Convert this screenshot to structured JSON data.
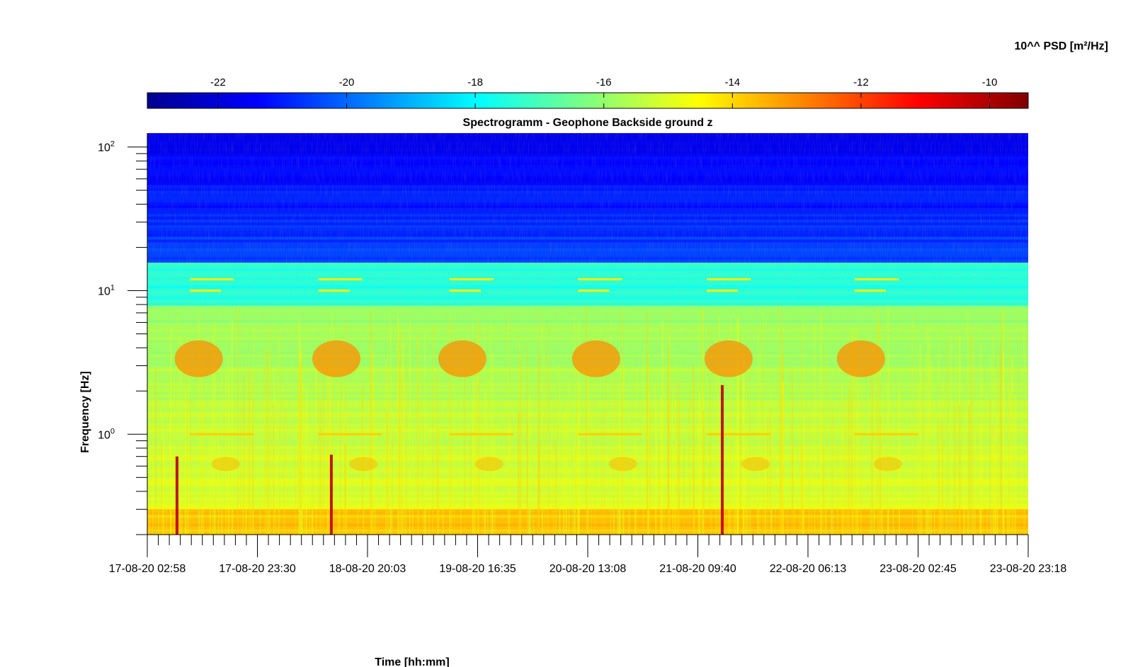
{
  "chart_data": {
    "type": "heatmap",
    "title": "Spectrogramm - Geophone Backside ground z",
    "xlabel": "Time [hh:mm]",
    "ylabel": "Frequency [Hz]",
    "colorbar": {
      "label": "10^^ PSD [m²/Hz]",
      "colormap": "jet",
      "range": [
        -23.1,
        -9.4
      ],
      "ticks": [
        "-22",
        "-20",
        "-18",
        "-16",
        "-14",
        "-12",
        "-10"
      ],
      "position": "top"
    },
    "x_ticks": [
      "17-08-20 02:58",
      "17-08-20 23:30",
      "18-08-20 20:03",
      "19-08-20 16:35",
      "20-08-20 13:08",
      "21-08-20 09:40",
      "22-08-20 06:13",
      "23-08-20 02:45",
      "23-08-20 23:18"
    ],
    "y_scale": "log",
    "y_range_hz": [
      0.2,
      125
    ],
    "y_ticks": [
      {
        "base": "10",
        "exp": "0"
      },
      {
        "base": "10",
        "exp": "1"
      },
      {
        "base": "10",
        "exp": "2"
      }
    ],
    "grid": false,
    "features": {
      "background_psd_by_band": [
        {
          "f_low": 16,
          "f_high": 125,
          "psd_log10": -20.5
        },
        {
          "f_low": 8,
          "f_high": 16,
          "psd_log10": -17.5
        },
        {
          "f_low": 0.3,
          "f_high": 8,
          "psd_log10": -15.5
        },
        {
          "f_low": 0.2,
          "f_high": 0.3,
          "psd_log10": -13.8
        }
      ],
      "daily_activity_band_hz": [
        2.5,
        4.5
      ],
      "daily_activity_psd_log10": -13,
      "tonal_lines_hz": [
        12,
        10,
        1.0
      ],
      "transient_events": [
        "17-08-20",
        "18-08-20",
        "21-08-20"
      ]
    }
  }
}
